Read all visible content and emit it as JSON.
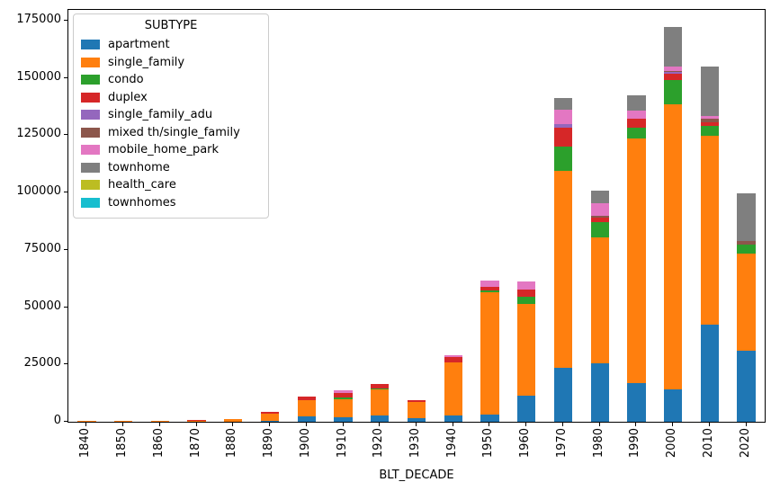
{
  "figure": {
    "xlabel": "BLT_DECADE",
    "legend_title": "SUBTYPE"
  },
  "chart_data": {
    "type": "bar",
    "stacked": true,
    "title": "",
    "xlabel": "BLT_DECADE",
    "ylabel": "",
    "ylim": [
      0,
      175000
    ],
    "yticks": [
      0,
      25000,
      50000,
      75000,
      100000,
      125000,
      150000,
      175000
    ],
    "grid": false,
    "legend": {
      "title": "SUBTYPE",
      "position": "upper left"
    },
    "categories": [
      "1840",
      "1850",
      "1860",
      "1870",
      "1880",
      "1890",
      "1900",
      "1910",
      "1920",
      "1930",
      "1940",
      "1950",
      "1960",
      "1970",
      "1980",
      "1990",
      "2000",
      "2010",
      "2020"
    ],
    "series": [
      {
        "name": "apartment",
        "color": "#1f77b4",
        "values": [
          0,
          0,
          0,
          0,
          100,
          300,
          2200,
          2000,
          2700,
          1600,
          2700,
          3000,
          11200,
          23700,
          25600,
          17000,
          14200,
          42400,
          31000
        ]
      },
      {
        "name": "single_family",
        "color": "#ff7f0e",
        "values": [
          50,
          100,
          150,
          500,
          1100,
          3300,
          7100,
          8000,
          11300,
          7100,
          23300,
          53400,
          40200,
          85900,
          54700,
          106600,
          124400,
          82400,
          42300
        ]
      },
      {
        "name": "condo",
        "color": "#2ca02c",
        "values": [
          0,
          0,
          0,
          0,
          0,
          0,
          0,
          700,
          600,
          0,
          0,
          700,
          3100,
          10500,
          7000,
          4700,
          10500,
          4300,
          3900
        ]
      },
      {
        "name": "duplex",
        "color": "#d62728",
        "values": [
          0,
          0,
          0,
          100,
          0,
          600,
          1700,
          2000,
          1800,
          900,
          2200,
          1900,
          3300,
          8300,
          1600,
          3900,
          2900,
          1600,
          200
        ]
      },
      {
        "name": "single_family_adu",
        "color": "#9467bd",
        "values": [
          0,
          0,
          0,
          0,
          0,
          0,
          0,
          0,
          0,
          0,
          0,
          0,
          0,
          1300,
          0,
          0,
          600,
          0,
          0
        ]
      },
      {
        "name": "mixed th/single_family",
        "color": "#8c564b",
        "values": [
          0,
          0,
          0,
          0,
          0,
          0,
          0,
          0,
          0,
          0,
          0,
          0,
          0,
          0,
          1000,
          0,
          450,
          1600,
          1600
        ]
      },
      {
        "name": "mobile_home_park",
        "color": "#e377c2",
        "values": [
          0,
          0,
          0,
          0,
          0,
          0,
          0,
          900,
          0,
          0,
          800,
          2600,
          3300,
          6500,
          5300,
          3500,
          2100,
          1200,
          0
        ]
      },
      {
        "name": "townhome",
        "color": "#7f7f7f",
        "values": [
          0,
          0,
          0,
          0,
          0,
          0,
          0,
          0,
          0,
          0,
          0,
          0,
          0,
          4900,
          5500,
          6900,
          17000,
          21500,
          20500
        ]
      },
      {
        "name": "health_care",
        "color": "#bcbd22",
        "values": [
          0,
          0,
          0,
          0,
          0,
          0,
          0,
          0,
          0,
          0,
          0,
          0,
          0,
          0,
          0,
          0,
          0,
          0,
          0
        ]
      },
      {
        "name": "townhomes",
        "color": "#17becf",
        "values": [
          0,
          0,
          0,
          0,
          0,
          0,
          0,
          0,
          0,
          0,
          0,
          0,
          0,
          0,
          0,
          0,
          0,
          0,
          0
        ]
      }
    ]
  }
}
